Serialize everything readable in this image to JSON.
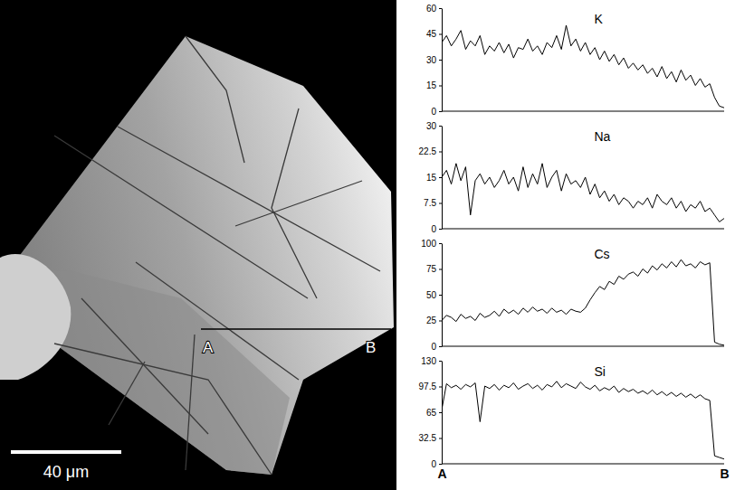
{
  "image": {
    "point_a": "A",
    "point_b": "B",
    "scale_bar": "40 μm"
  },
  "chart_data": [
    {
      "type": "line",
      "title": "K",
      "color": "#000000",
      "tick_labels": "y",
      "ylim": [
        0,
        60
      ],
      "yticks": [
        0,
        15,
        30,
        45,
        60
      ],
      "categories": [
        null,
        null,
        null,
        null,
        null,
        null,
        null,
        null,
        null,
        null,
        null,
        null,
        null,
        null,
        null,
        null,
        null,
        null,
        null,
        null,
        null,
        null,
        null,
        null,
        null,
        null,
        null,
        null,
        null,
        null,
        null,
        null,
        null,
        null,
        null,
        null,
        null,
        null,
        null,
        null,
        null,
        null,
        null,
        null,
        null,
        null,
        null,
        null,
        null,
        null,
        null,
        null,
        null,
        null,
        null,
        null,
        null,
        null,
        null,
        null
      ],
      "values": [
        40,
        44,
        38,
        42,
        47,
        36,
        41,
        38,
        44,
        33,
        38,
        35,
        40,
        34,
        39,
        31,
        37,
        36,
        42,
        35,
        38,
        33,
        40,
        37,
        44,
        36,
        50,
        38,
        42,
        35,
        40,
        33,
        37,
        30,
        35,
        29,
        33,
        27,
        31,
        25,
        28,
        24,
        27,
        22,
        25,
        20,
        26,
        19,
        23,
        17,
        24,
        18,
        21,
        15,
        19,
        14,
        16,
        8,
        3,
        2
      ]
    },
    {
      "type": "line",
      "title": "Na",
      "color": "#000000",
      "tick_labels": "y",
      "ylim": [
        0,
        30
      ],
      "yticks": [
        0,
        7.5,
        15,
        22.5,
        30
      ],
      "categories": [
        null,
        null,
        null,
        null,
        null,
        null,
        null,
        null,
        null,
        null,
        null,
        null,
        null,
        null,
        null,
        null,
        null,
        null,
        null,
        null,
        null,
        null,
        null,
        null,
        null,
        null,
        null,
        null,
        null,
        null,
        null,
        null,
        null,
        null,
        null,
        null,
        null,
        null,
        null,
        null,
        null,
        null,
        null,
        null,
        null,
        null,
        null,
        null,
        null,
        null,
        null,
        null,
        null,
        null,
        null,
        null,
        null,
        null,
        null,
        null
      ],
      "values": [
        15,
        17,
        13,
        19,
        14,
        18,
        4,
        14,
        16,
        13,
        15,
        12,
        14,
        17,
        13,
        15,
        11,
        18,
        12,
        16,
        13,
        19,
        12,
        15,
        17,
        11,
        16,
        13,
        14,
        12,
        15,
        10,
        13,
        9,
        11,
        8,
        10,
        7,
        9,
        8,
        6,
        8,
        7,
        9,
        6,
        10,
        8,
        7,
        9,
        6,
        8,
        5,
        7,
        6,
        8,
        5,
        6,
        4,
        2,
        3
      ]
    },
    {
      "type": "line",
      "title": "Cs",
      "color": "#000000",
      "tick_labels": "y",
      "ylim": [
        0,
        100
      ],
      "yticks": [
        0,
        25,
        50,
        75,
        100
      ],
      "categories": [
        null,
        null,
        null,
        null,
        null,
        null,
        null,
        null,
        null,
        null,
        null,
        null,
        null,
        null,
        null,
        null,
        null,
        null,
        null,
        null,
        null,
        null,
        null,
        null,
        null,
        null,
        null,
        null,
        null,
        null,
        null,
        null,
        null,
        null,
        null,
        null,
        null,
        null,
        null,
        null,
        null,
        null,
        null,
        null,
        null,
        null,
        null,
        null,
        null,
        null,
        null,
        null,
        null,
        null,
        null,
        null,
        null,
        null,
        null,
        null
      ],
      "values": [
        25,
        30,
        28,
        24,
        31,
        27,
        29,
        25,
        32,
        28,
        30,
        34,
        29,
        36,
        32,
        35,
        31,
        37,
        33,
        38,
        34,
        36,
        32,
        37,
        33,
        35,
        31,
        36,
        34,
        33,
        37,
        45,
        52,
        58,
        55,
        63,
        60,
        68,
        65,
        70,
        72,
        68,
        75,
        71,
        78,
        74,
        80,
        76,
        82,
        77,
        84,
        78,
        80,
        76,
        82,
        79,
        81,
        4,
        2,
        1
      ]
    },
    {
      "type": "line",
      "title": "Si",
      "color": "#000000",
      "ylim": [
        0,
        130
      ],
      "yticks": [
        0,
        32.5,
        65,
        97.5,
        130
      ],
      "categories": [
        "A",
        null,
        null,
        null,
        null,
        null,
        null,
        null,
        null,
        null,
        null,
        null,
        null,
        null,
        null,
        null,
        null,
        null,
        null,
        null,
        null,
        null,
        null,
        null,
        null,
        null,
        null,
        null,
        null,
        null,
        null,
        null,
        null,
        null,
        null,
        null,
        null,
        null,
        null,
        null,
        null,
        null,
        null,
        null,
        null,
        null,
        null,
        null,
        null,
        null,
        null,
        null,
        null,
        null,
        null,
        null,
        null,
        null,
        null,
        "B"
      ],
      "values": [
        68,
        101,
        96,
        99,
        94,
        100,
        97,
        102,
        53,
        98,
        95,
        100,
        93,
        99,
        96,
        102,
        94,
        98,
        101,
        95,
        99,
        93,
        100,
        97,
        104,
        96,
        101,
        98,
        95,
        103,
        97,
        94,
        99,
        92,
        96,
        93,
        98,
        90,
        95,
        91,
        94,
        89,
        92,
        88,
        93,
        87,
        91,
        86,
        90,
        85,
        89,
        84,
        88,
        83,
        87,
        82,
        80,
        10,
        8,
        6
      ]
    }
  ]
}
